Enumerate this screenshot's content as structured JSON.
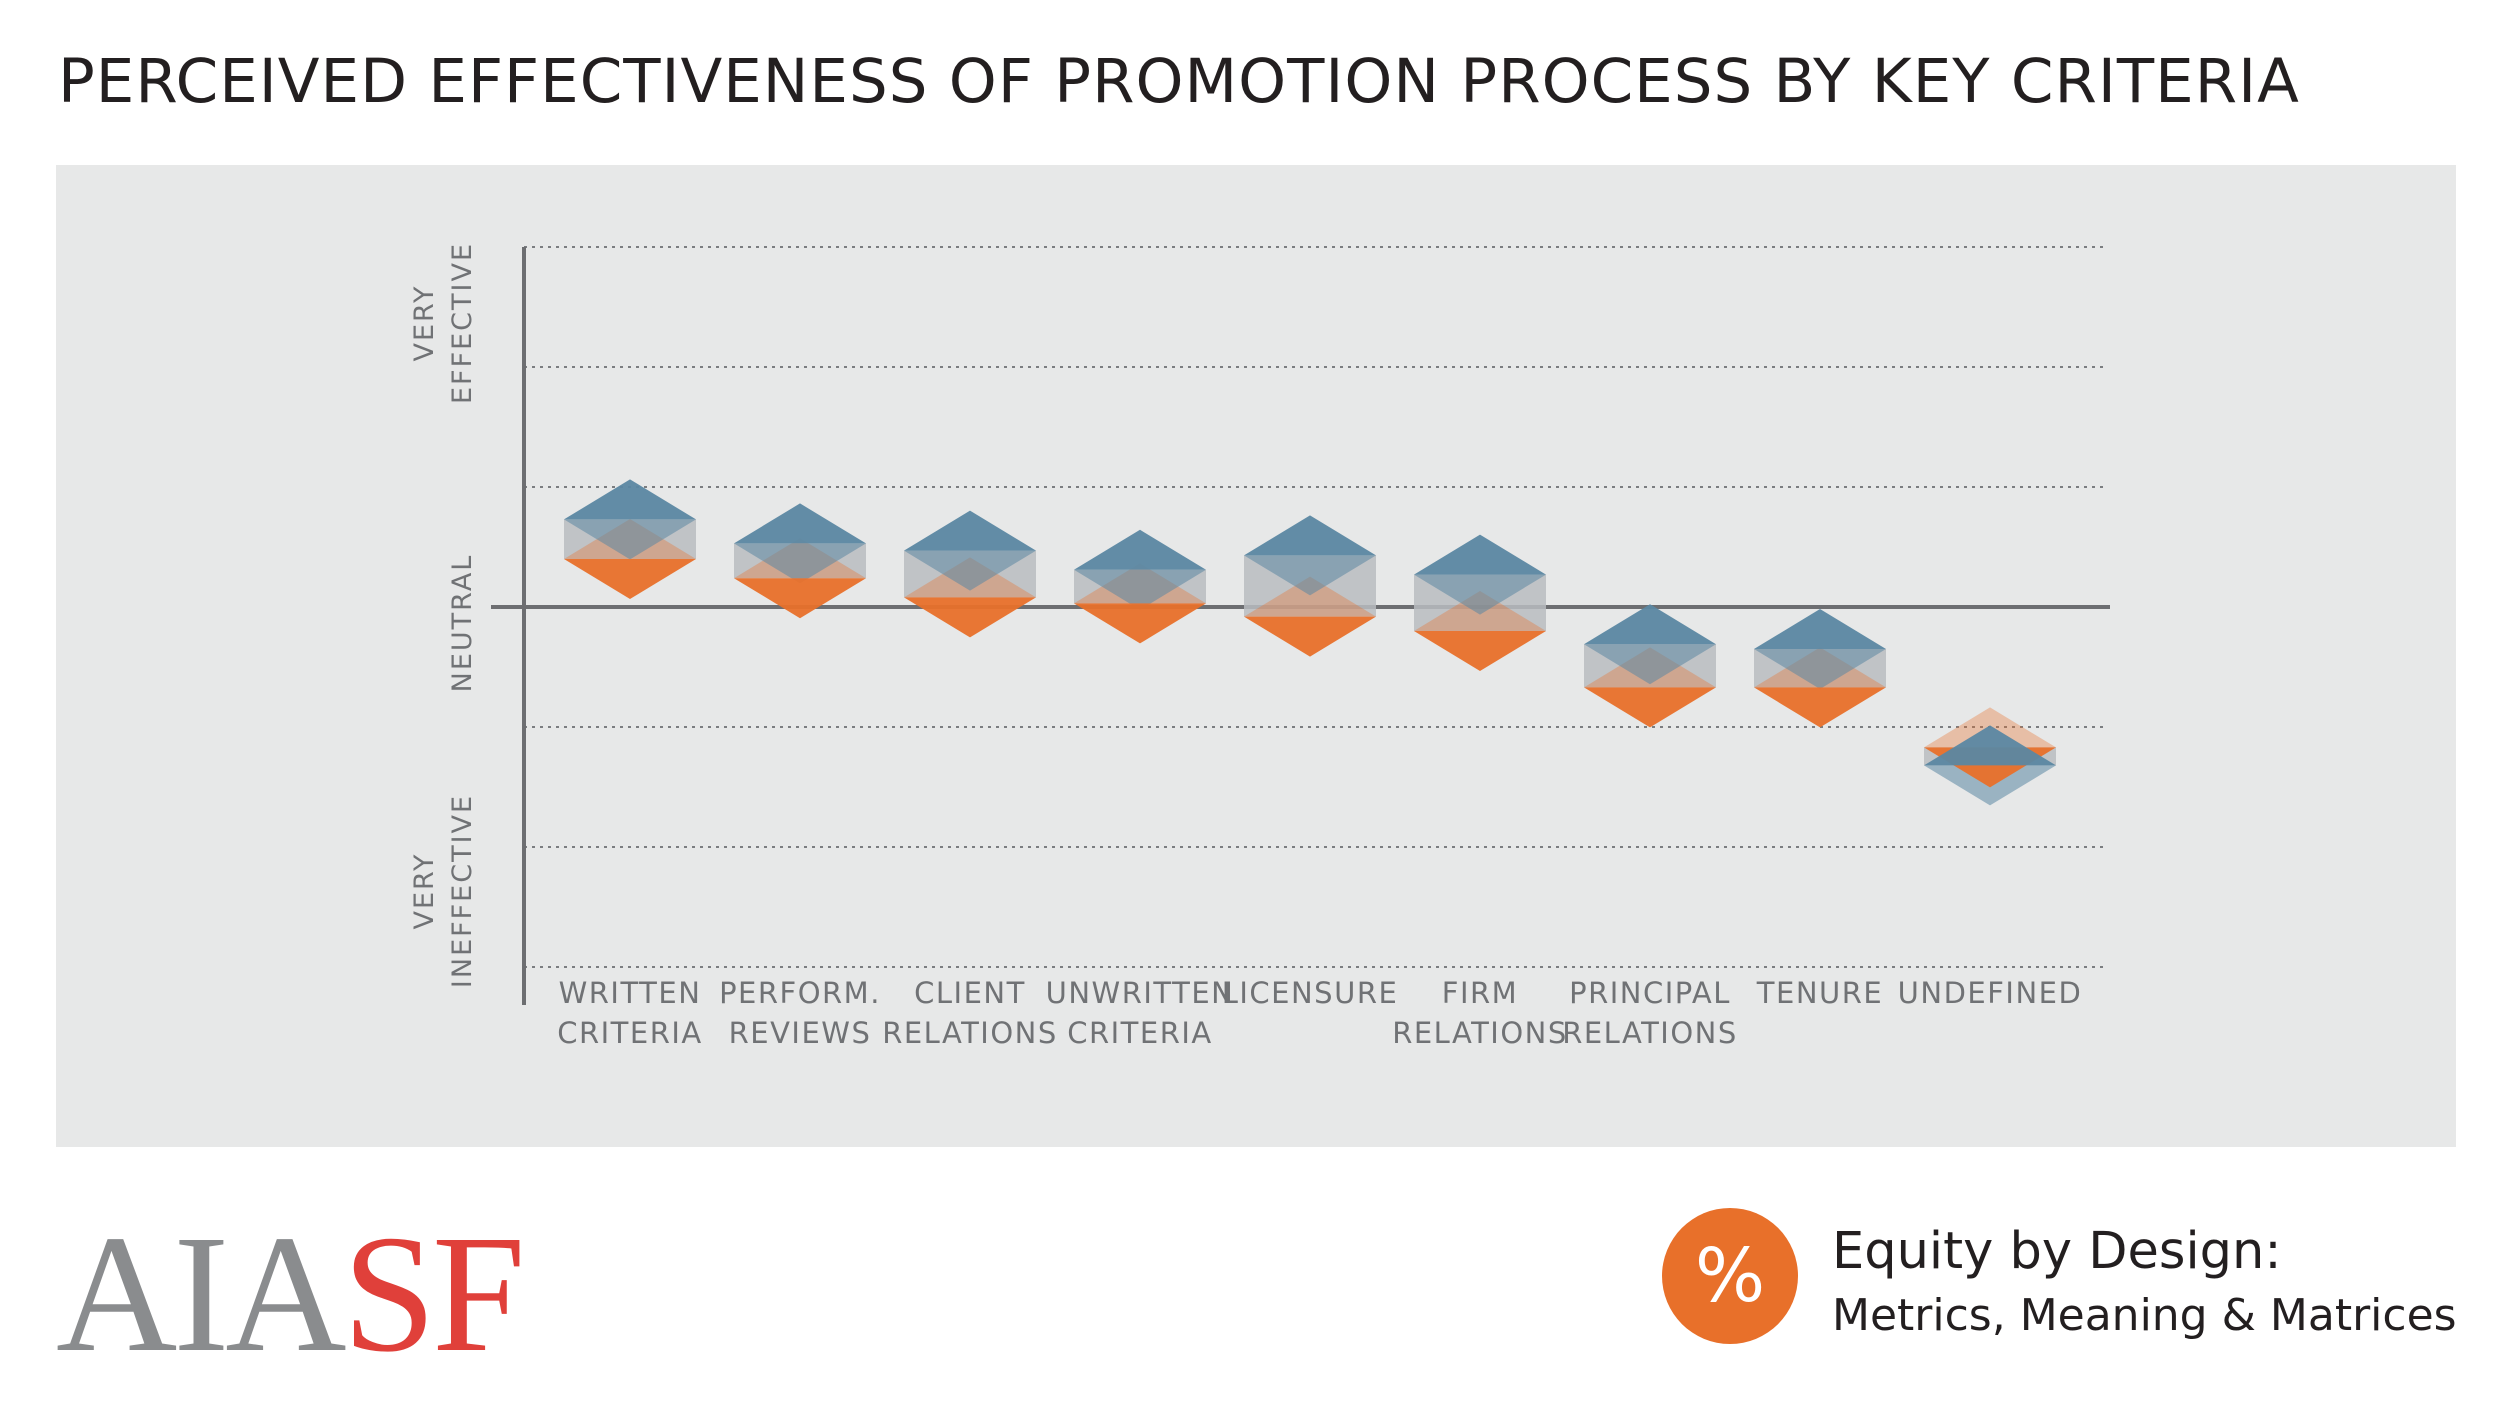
{
  "chart_data": {
    "type": "range-diamond",
    "title": "PERCEIVED EFFECTIVENESS OF PROMOTION PROCESS BY KEY CRITERIA",
    "ylim": [
      -3,
      3
    ],
    "yticks": [
      -3,
      -2,
      -1,
      0,
      1,
      2,
      3
    ],
    "ylabels": [
      {
        "value": 3,
        "lines": [
          "VERY",
          "EFFECTIVE"
        ]
      },
      {
        "value": 0,
        "lines": [
          "NEUTRAL"
        ]
      },
      {
        "value": -3,
        "lines": [
          "VERY",
          "INEFFECTIVE"
        ]
      }
    ],
    "categories": [
      {
        "lines": [
          "WRITTEN",
          "CRITERIA"
        ]
      },
      {
        "lines": [
          "PERFORM.",
          "REVIEWS"
        ]
      },
      {
        "lines": [
          "CLIENT",
          "RELATIONS"
        ]
      },
      {
        "lines": [
          "UNWRITTEN",
          "CRITERIA"
        ]
      },
      {
        "lines": [
          "LICENSURE"
        ]
      },
      {
        "lines": [
          "FIRM",
          "RELATIONS"
        ]
      },
      {
        "lines": [
          "PRINCIPAL",
          "RELATIONS"
        ]
      },
      {
        "lines": [
          "TENURE"
        ]
      },
      {
        "lines": [
          "UNDEFINED"
        ]
      }
    ],
    "series": [
      {
        "name": "Blue group",
        "color": "#5b87a2",
        "values": [
          0.73,
          0.53,
          0.47,
          0.31,
          0.43,
          0.27,
          -0.31,
          -0.35,
          -1.32
        ]
      },
      {
        "name": "Orange group",
        "color": "#e8702a",
        "values": [
          0.4,
          0.24,
          0.08,
          0.03,
          -0.08,
          -0.2,
          -0.67,
          -0.67,
          -1.17
        ]
      }
    ]
  },
  "footer": {
    "logo_prefix": "AIA",
    "logo_suffix": "SF",
    "badge_symbol": "%",
    "brand_title": "Equity by Design:",
    "brand_subtitle": "Metrics, Meaning & Matrices"
  },
  "colors": {
    "panel_bg": "#e7e8e8",
    "axis": "#6d6e71",
    "blue": "#5b87a2",
    "orange": "#e8702a",
    "overlap": "#b8bcc0"
  }
}
